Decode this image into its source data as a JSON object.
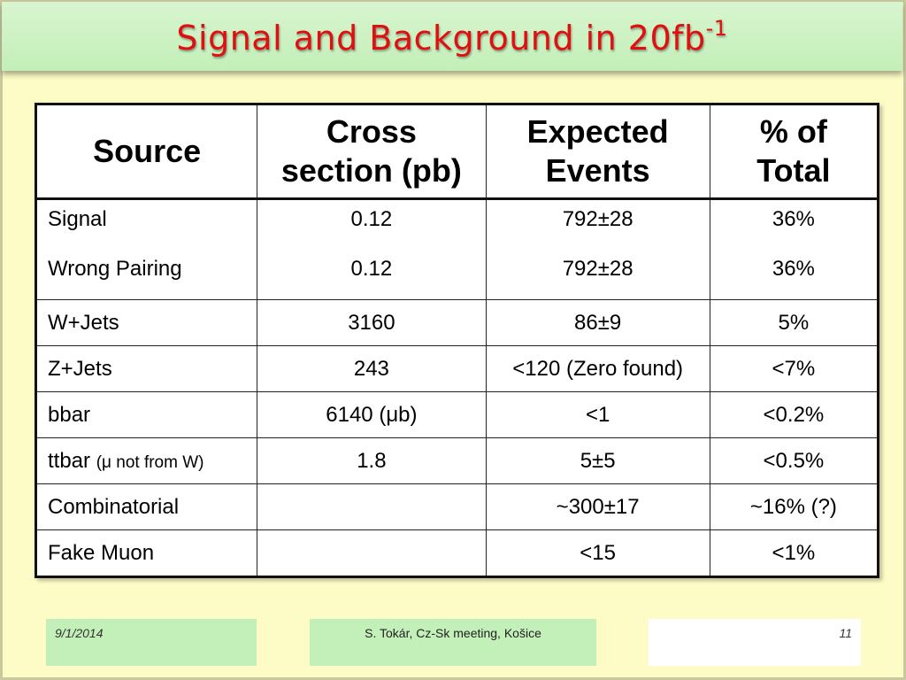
{
  "slide": {
    "title": "Signal and Background in 20fb",
    "title_sup": "-1"
  },
  "table": {
    "headers": [
      "Source",
      "Cross section (pb)",
      "Expected Events",
      "% of Total"
    ],
    "header_lines": [
      [
        "Source"
      ],
      [
        "Cross",
        "section (pb)"
      ],
      [
        "Expected",
        "Events"
      ],
      [
        "% of",
        "Total"
      ]
    ],
    "group_rows": [
      {
        "source": [
          "Signal",
          "Wrong Pairing"
        ],
        "cross": [
          "0.12",
          "0.12"
        ],
        "events": [
          "792±28",
          "792±28"
        ],
        "pct": [
          "36%",
          "36%"
        ]
      }
    ],
    "rows": [
      {
        "source": "W+Jets",
        "source_note": "",
        "cross": "3160",
        "events": "86±9",
        "pct": "5%"
      },
      {
        "source": "Z+Jets",
        "source_note": "",
        "cross": "243",
        "events": "<120 (Zero found)",
        "pct": "<7%"
      },
      {
        "source": "bbar",
        "source_note": "",
        "cross": "6140 (μb)",
        "events": "<1",
        "pct": "<0.2%"
      },
      {
        "source": "ttbar",
        "source_note": "(μ not from W)",
        "cross": "1.8",
        "events": "5±5",
        "pct": "<0.5%"
      },
      {
        "source": "Combinatorial",
        "source_note": "",
        "cross": "",
        "events": "~300±17",
        "pct": "~16% (?)"
      },
      {
        "source": "Fake Muon",
        "source_note": "",
        "cross": "",
        "events": "<15",
        "pct": "<1%"
      }
    ]
  },
  "footer": {
    "date": "9/1/2014",
    "center": "S. Tokár, Cz-Sk meeting, Košice",
    "page": "11"
  },
  "colors": {
    "background": "#fdfcc6",
    "title_bar": "#c3efb8",
    "title_text": "#e01010"
  }
}
